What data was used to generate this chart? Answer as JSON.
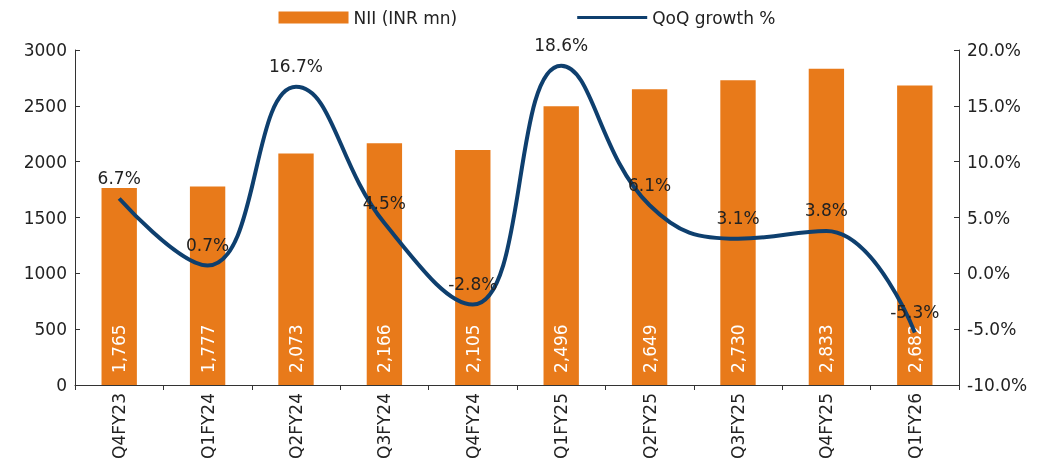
{
  "chart_data": {
    "type": "bar",
    "categories": [
      "Q4FY23",
      "Q1FY24",
      "Q2FY24",
      "Q3FY24",
      "Q4FY24",
      "Q1FY25",
      "Q2FY25",
      "Q3FY25",
      "Q4FY25",
      "Q1FY26"
    ],
    "series": [
      {
        "name": "NII (INR mn)",
        "color": "#e87a1a",
        "values": [
          1765,
          1777,
          2073,
          2166,
          2105,
          2496,
          2649,
          2730,
          2833,
          2682
        ],
        "value_labels": [
          "1,765",
          "1,777",
          "2,073",
          "2,166",
          "2,105",
          "2,496",
          "2,649",
          "2,730",
          "2,833",
          "2,682"
        ]
      },
      {
        "name": "QoQ growth %",
        "type": "line",
        "axis": "y2",
        "color": "#0e3f6e",
        "marker": "none",
        "values": [
          6.7,
          0.7,
          16.7,
          4.5,
          -2.8,
          18.6,
          6.1,
          3.1,
          3.8,
          -5.3
        ],
        "value_labels": [
          "6.7%",
          "0.7%",
          "16.7%",
          "4.5%",
          "-2.8%",
          "18.6%",
          "6.1%",
          "3.1%",
          "3.8%",
          "-5.3%"
        ]
      }
    ],
    "ylim": [
      0,
      3000
    ],
    "yticks": [
      0,
      500,
      1000,
      1500,
      2000,
      2500,
      3000
    ],
    "y2lim": [
      -10,
      20
    ],
    "y2ticks": [
      {
        "value": -10,
        "label": "-10.0%"
      },
      {
        "value": -5,
        "label": "-5.0%"
      },
      {
        "value": 0,
        "label": "0.0%"
      },
      {
        "value": 5,
        "label": "5.0%"
      },
      {
        "value": 10,
        "label": "10.0%"
      },
      {
        "value": 15,
        "label": "15.0%"
      },
      {
        "value": 20,
        "label": "20.0%"
      }
    ],
    "grid": false,
    "legend": "top"
  }
}
